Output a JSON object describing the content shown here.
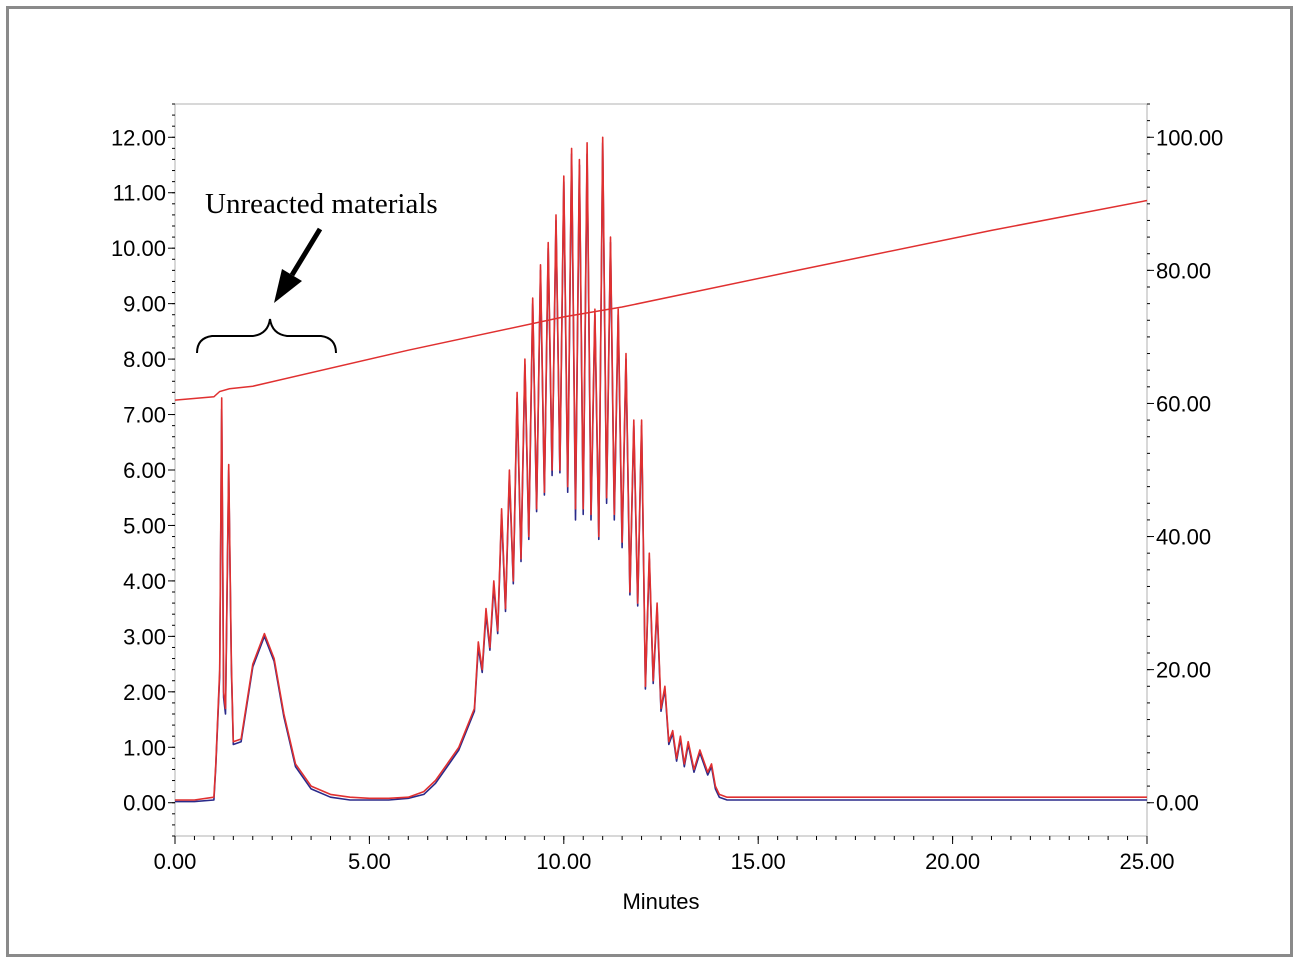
{
  "chart_data": {
    "type": "line",
    "title": "",
    "xlabel": "Minutes",
    "ylabel": "",
    "y2label": "",
    "xlim": [
      0,
      25
    ],
    "ylim": [
      -0.6,
      12.6
    ],
    "y2lim": [
      -5,
      105
    ],
    "x_ticks": [
      "0.00",
      "5.00",
      "10.00",
      "15.00",
      "20.00",
      "25.00"
    ],
    "x_tick_values": [
      0,
      5,
      10,
      15,
      20,
      25
    ],
    "y_ticks": [
      "0.00",
      "1.00",
      "2.00",
      "3.00",
      "4.00",
      "5.00",
      "6.00",
      "7.00",
      "8.00",
      "9.00",
      "10.00",
      "11.00",
      "12.00"
    ],
    "y_tick_values": [
      0,
      1,
      2,
      3,
      4,
      5,
      6,
      7,
      8,
      9,
      10,
      11,
      12
    ],
    "y2_ticks": [
      "0.00",
      "20.00",
      "40.00",
      "60.00",
      "80.00",
      "100.00"
    ],
    "y2_tick_values": [
      0,
      20,
      40,
      60,
      80,
      100
    ],
    "grid": false,
    "annotation": {
      "text": "Unreacted materials",
      "bracket_x": [
        0.6,
        4.1
      ],
      "bracket_y": 8.3
    },
    "gradient_line": {
      "axis": "right",
      "color": "#e03030",
      "x": [
        0,
        1.0,
        1.15,
        1.4,
        2.0,
        6.0,
        10.0,
        11.5,
        16.0,
        21.0,
        25.0
      ],
      "y": [
        60.5,
        61.0,
        61.8,
        62.2,
        62.6,
        68.0,
        73.0,
        74.5,
        80.0,
        86.0,
        90.5
      ]
    },
    "series": [
      {
        "color": "#e03030",
        "x": [
          0,
          0.5,
          1.0,
          1.05,
          1.15,
          1.2,
          1.25,
          1.3,
          1.38,
          1.45,
          1.5,
          1.7,
          2.0,
          2.3,
          2.55,
          2.8,
          3.1,
          3.5,
          4.0,
          4.5,
          5.0,
          5.5,
          6.0,
          6.4,
          6.7,
          7.0,
          7.3,
          7.5,
          7.7,
          7.8,
          7.9,
          8.0,
          8.1,
          8.2,
          8.3,
          8.4,
          8.5,
          8.6,
          8.7,
          8.8,
          8.9,
          9.0,
          9.1,
          9.2,
          9.3,
          9.4,
          9.5,
          9.6,
          9.7,
          9.8,
          9.9,
          10.0,
          10.1,
          10.2,
          10.3,
          10.4,
          10.5,
          10.6,
          10.7,
          10.8,
          10.9,
          11.0,
          11.1,
          11.2,
          11.3,
          11.4,
          11.5,
          11.6,
          11.7,
          11.8,
          11.9,
          12.0,
          12.1,
          12.2,
          12.3,
          12.4,
          12.5,
          12.6,
          12.7,
          12.8,
          12.9,
          13.0,
          13.1,
          13.2,
          13.35,
          13.5,
          13.7,
          13.8,
          13.9,
          14.0,
          14.2,
          14.35,
          14.5,
          14.7,
          14.85,
          15.0,
          15.15,
          15.35,
          15.55,
          15.75,
          16.0,
          16.3,
          17.0,
          18.0,
          19.0,
          20.0,
          21.0,
          22.0,
          23.0,
          24.0,
          25.0
        ],
        "y": [
          0.05,
          0.05,
          0.1,
          0.7,
          2.4,
          7.3,
          2.0,
          1.7,
          6.1,
          2.5,
          1.1,
          1.15,
          2.5,
          3.05,
          2.6,
          1.6,
          0.7,
          0.3,
          0.15,
          0.1,
          0.08,
          0.08,
          0.1,
          0.2,
          0.4,
          0.7,
          1.0,
          1.35,
          1.7,
          2.9,
          2.4,
          3.5,
          2.8,
          4.0,
          3.1,
          5.3,
          3.5,
          6.0,
          4.0,
          7.4,
          4.4,
          8.0,
          4.8,
          9.1,
          5.3,
          9.7,
          5.6,
          10.1,
          6.0,
          10.6,
          6.0,
          11.3,
          5.7,
          11.8,
          5.3,
          11.6,
          5.3,
          11.9,
          5.2,
          8.9,
          4.8,
          12.0,
          5.5,
          10.2,
          5.2,
          8.9,
          4.7,
          8.1,
          3.8,
          6.9,
          3.6,
          6.9,
          2.1,
          4.5,
          2.2,
          3.6,
          1.7,
          2.1,
          1.1,
          1.3,
          0.8,
          1.2,
          0.7,
          1.1,
          0.6,
          0.95,
          0.55,
          0.7,
          0.3,
          0.15,
          0.1,
          0.1,
          0.1,
          0.1,
          0.1,
          0.1,
          0.1,
          0.1,
          0.1,
          0.1,
          0.1,
          0.1,
          0.1,
          0.1,
          0.1,
          0.1,
          0.1,
          0.1,
          0.1,
          0.1,
          0.1
        ]
      },
      {
        "color": "#2a2a8a",
        "x": [
          0,
          0.5,
          1.0,
          1.05,
          1.15,
          1.2,
          1.25,
          1.3,
          1.38,
          1.45,
          1.5,
          1.7,
          2.0,
          2.3,
          2.55,
          2.8,
          3.1,
          3.5,
          4.0,
          4.5,
          5.0,
          5.5,
          6.0,
          6.4,
          6.7,
          7.0,
          7.3,
          7.5,
          7.7,
          7.8,
          7.9,
          8.0,
          8.1,
          8.2,
          8.3,
          8.4,
          8.5,
          8.6,
          8.7,
          8.8,
          8.9,
          9.0,
          9.1,
          9.2,
          9.3,
          9.4,
          9.5,
          9.6,
          9.7,
          9.8,
          9.9,
          10.0,
          10.1,
          10.2,
          10.3,
          10.4,
          10.5,
          10.6,
          10.7,
          10.8,
          10.9,
          11.0,
          11.1,
          11.2,
          11.3,
          11.4,
          11.5,
          11.6,
          11.7,
          11.8,
          11.9,
          12.0,
          12.1,
          12.2,
          12.3,
          12.4,
          12.5,
          12.6,
          12.7,
          12.8,
          12.9,
          13.0,
          13.1,
          13.2,
          13.35,
          13.5,
          13.7,
          13.8,
          13.9,
          14.0,
          14.2,
          14.35,
          14.5,
          14.7,
          14.85,
          15.0,
          15.15,
          15.35,
          15.55,
          15.75,
          16.0,
          16.3,
          17.0,
          18.0,
          19.0,
          20.0,
          21.0,
          22.0,
          23.0,
          24.0,
          25.0
        ],
        "y": [
          0.02,
          0.02,
          0.05,
          0.65,
          2.3,
          7.1,
          1.9,
          1.6,
          6.0,
          2.4,
          1.05,
          1.1,
          2.45,
          3.0,
          2.55,
          1.55,
          0.65,
          0.25,
          0.1,
          0.05,
          0.05,
          0.05,
          0.08,
          0.15,
          0.35,
          0.65,
          0.95,
          1.3,
          1.65,
          2.8,
          2.35,
          3.4,
          2.75,
          3.9,
          3.05,
          5.2,
          3.45,
          5.9,
          3.95,
          7.3,
          4.35,
          7.9,
          4.75,
          9.0,
          5.25,
          9.6,
          5.55,
          10.0,
          5.9,
          10.5,
          5.95,
          11.2,
          5.6,
          11.7,
          5.1,
          11.5,
          5.2,
          11.7,
          5.1,
          8.8,
          4.75,
          11.9,
          5.4,
          10.1,
          5.1,
          8.8,
          4.6,
          8.0,
          3.75,
          6.8,
          3.55,
          6.8,
          2.05,
          4.4,
          2.15,
          3.5,
          1.65,
          2.05,
          1.05,
          1.25,
          0.75,
          1.15,
          0.65,
          1.05,
          0.55,
          0.9,
          0.5,
          0.65,
          0.25,
          0.1,
          0.05,
          0.05,
          0.05,
          0.05,
          0.05,
          0.05,
          0.05,
          0.05,
          0.05,
          0.05,
          0.05,
          0.05,
          0.05,
          0.05,
          0.05,
          0.05,
          0.05,
          0.05,
          0.05,
          0.05,
          0.05
        ]
      }
    ]
  }
}
